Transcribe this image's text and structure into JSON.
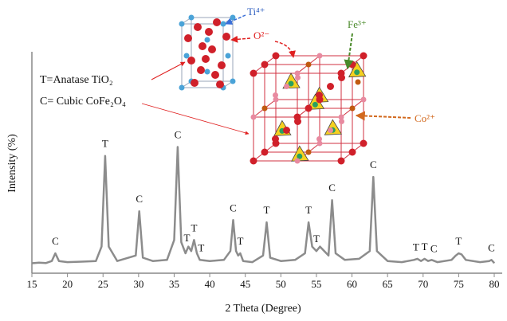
{
  "chart_data": {
    "type": "line",
    "xlabel": "2 Theta (Degree)",
    "ylabel": "Intensity (%)",
    "xlim": [
      15,
      80
    ],
    "xticks": [
      15,
      20,
      25,
      30,
      35,
      40,
      45,
      50,
      55,
      60,
      65,
      70,
      75,
      80
    ],
    "ylim": [
      0,
      100
    ],
    "series": [
      {
        "color": "#8c8c8c",
        "x": [
          15,
          16,
          17,
          17.8,
          18.3,
          18.8,
          20,
          22,
          24,
          24.8,
          25.3,
          25.8,
          27,
          29.6,
          30.1,
          30.6,
          32,
          34,
          35.0,
          35.5,
          36.0,
          36.6,
          37.0,
          37.4,
          37.8,
          38.2,
          38.6,
          40,
          42,
          42.9,
          43.3,
          43.7,
          44.0,
          44.3,
          44.7,
          46,
          47.5,
          48.0,
          48.5,
          50,
          52,
          53.4,
          53.9,
          54.4,
          55.0,
          55.5,
          56.7,
          57.2,
          57.7,
          59,
          61,
          62.5,
          63.0,
          63.5,
          65,
          67,
          68.7,
          69.2,
          69.7,
          70.2,
          70.7,
          71.2,
          72,
          74,
          74.6,
          75.0,
          75.4,
          76,
          78,
          79.3,
          79.6,
          79.9,
          80
        ],
        "values": [
          4.5,
          4.8,
          4.6,
          5.5,
          9,
          5.5,
          5,
          5.2,
          5.5,
          12,
          53,
          12,
          5.5,
          8,
          28,
          7,
          5.5,
          6,
          15,
          57,
          14,
          9,
          12,
          10,
          15,
          9,
          6,
          5.5,
          6,
          10,
          24,
          10,
          8,
          9,
          5.5,
          5,
          8,
          23,
          7,
          5.5,
          6,
          9,
          23,
          12,
          10,
          12,
          8,
          33,
          9,
          6,
          6.5,
          10,
          43.5,
          10,
          5.5,
          5,
          6,
          6.5,
          5.5,
          6.5,
          5.5,
          6,
          5,
          6,
          8,
          9,
          8.5,
          6,
          5,
          5.5,
          6,
          5,
          4.5
        ]
      }
    ],
    "peak_labels": [
      {
        "label": "C",
        "x": 18.3
      },
      {
        "label": "T",
        "x": 25.3
      },
      {
        "label": "C",
        "x": 30.1
      },
      {
        "label": "C",
        "x": 35.5
      },
      {
        "label": "T",
        "x": 36.8
      },
      {
        "label": "T",
        "x": 37.8
      },
      {
        "label": "T",
        "x": 38.8
      },
      {
        "label": "C",
        "x": 43.3
      },
      {
        "label": "T",
        "x": 44.3
      },
      {
        "label": "T",
        "x": 48.0
      },
      {
        "label": "T",
        "x": 53.9
      },
      {
        "label": "T",
        "x": 55.0
      },
      {
        "label": "C",
        "x": 57.2
      },
      {
        "label": "C",
        "x": 63.0
      },
      {
        "label": "T",
        "x": 69.0
      },
      {
        "label": "T",
        "x": 70.2
      },
      {
        "label": "C",
        "x": 71.5
      },
      {
        "label": "T",
        "x": 75.0
      },
      {
        "label": "C",
        "x": 79.6
      }
    ],
    "legend_texts": [
      "T=Anatase TiO₂",
      "C= Cubic CoFe₂O₄"
    ],
    "ion_labels": [
      "Ti⁴⁺",
      "O²⁻",
      "Fe³⁺",
      "Co²⁺"
    ]
  }
}
